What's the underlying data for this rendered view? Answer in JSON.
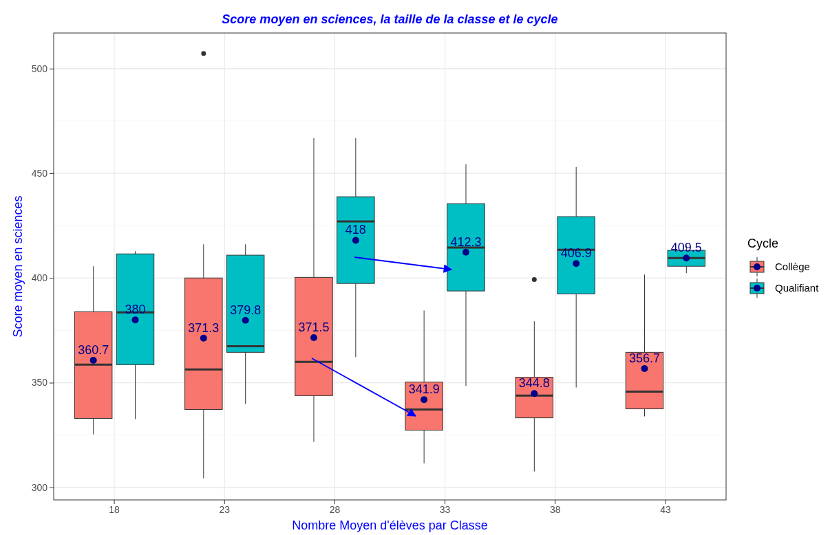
{
  "chart_data": {
    "type": "box",
    "title": "Score moyen en sciences, la taille de la classe et le cycle",
    "xlabel": "Nombre Moyen d'élèves par Classe",
    "ylabel": "Score moyen en sciences",
    "legend_title": "Cycle",
    "categories": [
      "18",
      "23",
      "28",
      "33",
      "38",
      "43"
    ],
    "ylim": [
      294,
      517
    ],
    "yticks": [
      300,
      350,
      400,
      450,
      500
    ],
    "grid": true,
    "legend": "right",
    "data_labels": true,
    "series": [
      {
        "name": "Collège",
        "color": "#f8766d",
        "boxes": [
          {
            "low": 325.3,
            "q1": 332.9,
            "median": 358.6,
            "q3": 383.9,
            "high": 405.6
          },
          {
            "low": 304.3,
            "q1": 337.2,
            "median": 356.3,
            "q3": 400,
            "high": 416.1,
            "outliers": [
              507.2
            ]
          },
          {
            "low": 321.7,
            "q1": 343.8,
            "median": 359.9,
            "q3": 400.3,
            "high": 466.8
          },
          {
            "low": 311.5,
            "q1": 327.3,
            "median": 337.2,
            "q3": 350.3,
            "high": 384.5
          },
          {
            "low": 307.6,
            "q1": 333.2,
            "median": 343.8,
            "q3": 352.6,
            "high": 379.3,
            "outliers": [
              399.3
            ]
          },
          {
            "low": 333.9,
            "q1": 337.5,
            "median": 345.7,
            "q3": 364.5,
            "high": 401.6
          }
        ]
      },
      {
        "name": "Qualifiant",
        "color": "#00bfc4",
        "boxes": [
          {
            "low": 332.6,
            "q1": 358.6,
            "median": 383.6,
            "q3": 411.5,
            "high": 412.8
          },
          {
            "low": 339.8,
            "q1": 364.5,
            "median": 367.4,
            "q3": 410.9,
            "high": 416.1
          },
          {
            "low": 362.2,
            "q1": 397.4,
            "median": 427,
            "q3": 438.8,
            "high": 466.8
          },
          {
            "low": 348.4,
            "q1": 393.8,
            "median": 414.5,
            "q3": 435.5,
            "high": 454.3
          },
          {
            "low": 347.7,
            "q1": 392.4,
            "median": 413.5,
            "q3": 429.3,
            "high": 453
          },
          {
            "low": 402.3,
            "q1": 405.6,
            "median": 409.5,
            "q3": 413.2,
            "high": 415.5
          }
        ]
      },
      {
        "type": "scatter",
        "color": "#00008b",
        "x": [
          "18",
          "23",
          "28",
          "33",
          "38",
          "43"
        ],
        "values": [
          360.7,
          371.3,
          371.5,
          341.9,
          344.8,
          356.7
        ]
      },
      {
        "type": "scatter",
        "color": "#00008b",
        "x": [
          "18",
          "23",
          "28",
          "33",
          "38",
          "43"
        ],
        "values": [
          380,
          379.8,
          418,
          412.3,
          406.9,
          409.5
        ]
      }
    ]
  }
}
